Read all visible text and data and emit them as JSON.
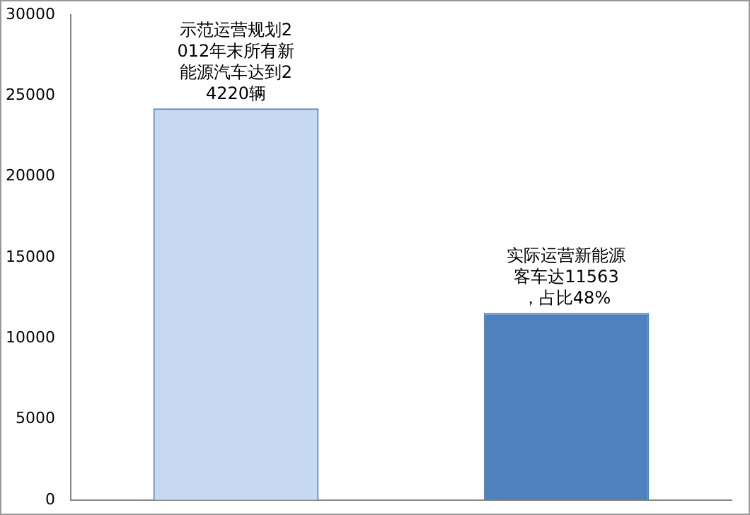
{
  "chart_data": {
    "type": "bar",
    "categories": [
      null,
      null
    ],
    "values": [
      24220,
      11563
    ],
    "colors": [
      "#c6d9f1",
      "#4f81bd"
    ],
    "ylim": [
      0,
      30000
    ],
    "yticks": [
      0,
      5000,
      10000,
      15000,
      20000,
      25000,
      30000
    ],
    "grid": false,
    "annotations": [
      "示范运营规划2012年末所有新能源汽车达到24220辆",
      "实际运营新能源客车达11563，占比48%"
    ]
  }
}
